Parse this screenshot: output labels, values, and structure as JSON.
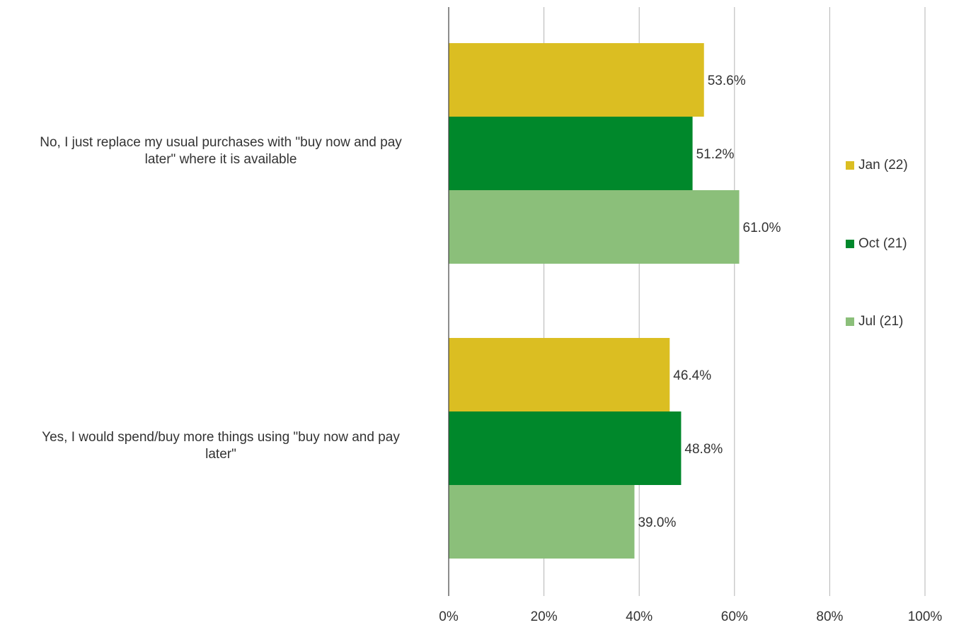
{
  "chart_data": {
    "type": "bar",
    "orientation": "horizontal",
    "categories": [
      "No, I just replace my usual purchases with \"buy now and pay later\" where it is available",
      "Yes, I would spend/buy more things using \"buy now and pay later\""
    ],
    "category_label_lines": [
      [
        "No, I just replace my usual purchases with \"buy now and pay",
        "later\" where it is available"
      ],
      [
        "Yes, I would spend/buy more things using \"buy now and pay",
        "later\""
      ]
    ],
    "series": [
      {
        "name": "Jan (22)",
        "color": "#dbbe22",
        "values": [
          53.6,
          46.4
        ],
        "labels": [
          "53.6%",
          "46.4%"
        ]
      },
      {
        "name": "Oct (21)",
        "color": "#00882b",
        "values": [
          51.2,
          48.8
        ],
        "labels": [
          "51.2%",
          "48.8%"
        ]
      },
      {
        "name": "Jul (21)",
        "color": "#8bbf7a",
        "values": [
          61.0,
          39.0
        ],
        "labels": [
          "61.0%",
          "39.0%"
        ]
      }
    ],
    "xlim": [
      0,
      100
    ],
    "x_ticks": [
      0,
      20,
      40,
      60,
      80,
      100
    ],
    "x_tick_labels": [
      "0%",
      "20%",
      "40%",
      "60%",
      "80%",
      "100%"
    ],
    "grid": true,
    "legend_position": "right"
  }
}
